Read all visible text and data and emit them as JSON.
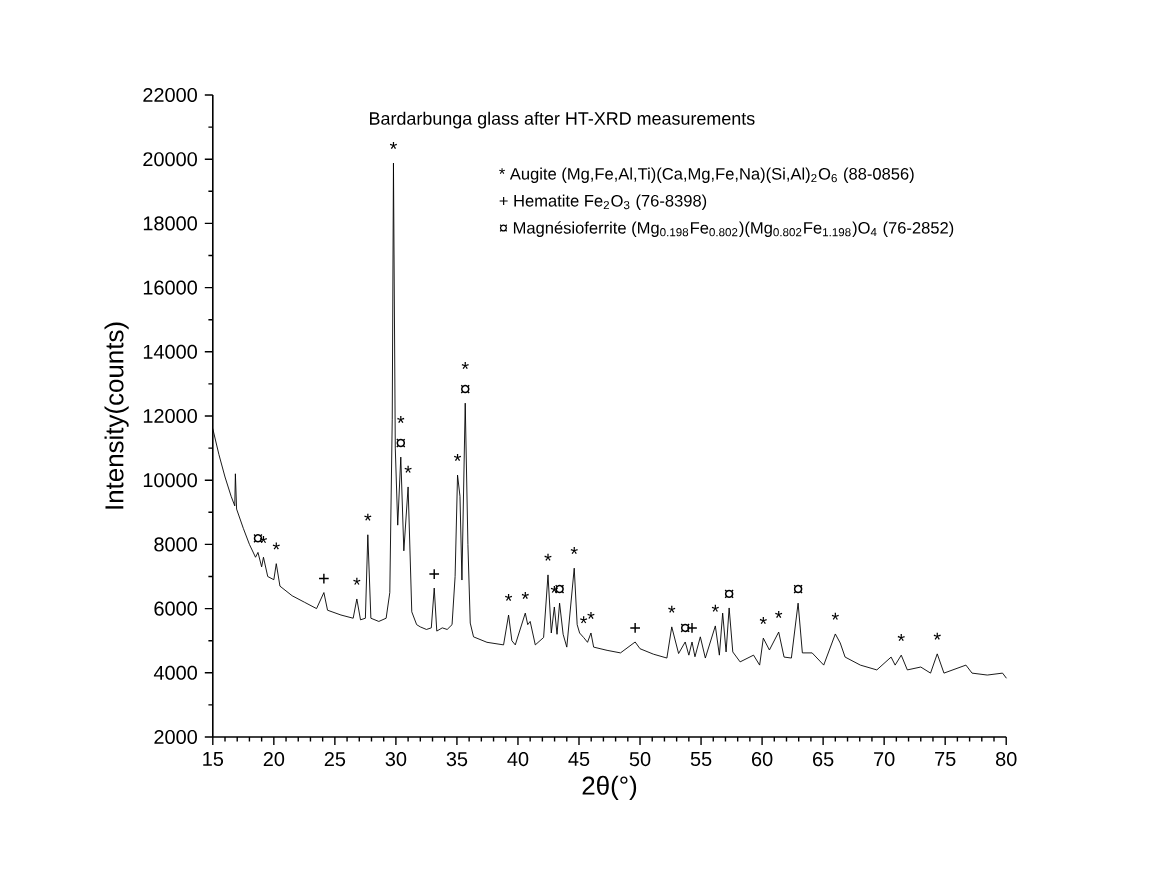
{
  "chart_data": {
    "type": "line",
    "title": "Bardarbunga glass after HT-XRD measurements",
    "xlabel": "2θ(°)",
    "ylabel": "Intensity(counts)",
    "x": [
      15,
      15.5,
      16.0,
      16.5,
      16.8,
      16.85,
      16.95,
      17.5,
      18.0,
      18.5,
      18.7,
      19.0,
      19.15,
      19.5,
      20.0,
      20.2,
      20.5,
      21.5,
      22.5,
      23.5,
      24.1,
      24.4,
      25.5,
      26.5,
      26.8,
      27.1,
      27.5,
      27.7,
      27.95,
      28.6,
      29.2,
      29.5,
      29.7,
      29.8,
      29.95,
      30.15,
      30.4,
      30.65,
      31.0,
      31.3,
      31.7,
      32.0,
      32.5,
      32.9,
      33.14,
      33.35,
      33.8,
      34.2,
      34.6,
      34.85,
      35.05,
      35.25,
      35.41,
      35.68,
      35.9,
      36.09,
      36.36,
      37.46,
      38.82,
      39.23,
      39.5,
      39.78,
      40.6,
      40.8,
      41.0,
      41.42,
      42.1,
      42.46,
      42.73,
      42.98,
      43.2,
      43.41,
      43.7,
      44.0,
      44.61,
      44.85,
      45.05,
      45.38,
      45.7,
      45.98,
      46.2,
      47.3,
      48.4,
      49.6,
      50.0,
      51.1,
      52.2,
      52.6,
      53.16,
      53.7,
      54.0,
      54.26,
      54.5,
      54.94,
      55.35,
      56.17,
      56.5,
      56.77,
      57.05,
      57.3,
      57.6,
      58.2,
      59.3,
      59.8,
      60.1,
      60.6,
      61.36,
      61.8,
      62.4,
      62.95,
      63.3,
      64.1,
      65.05,
      66.0,
      66.4,
      66.8,
      68.05,
      69.4,
      70.57,
      70.9,
      71.4,
      71.9,
      73.0,
      73.8,
      74.35,
      74.9,
      76.7,
      77.2,
      78.45,
      79.7,
      80.0
    ],
    "series": [
      {
        "color": "#000000",
        "values": [
          11600,
          10800,
          10100,
          9500,
          9200,
          10200,
          9100,
          8500,
          8000,
          7600,
          7750,
          7300,
          7600,
          7000,
          6900,
          7400,
          6700,
          6400,
          6200,
          6000,
          6500,
          5950,
          5800,
          5700,
          6300,
          5650,
          5700,
          8300,
          5700,
          5600,
          5700,
          6500,
          11900,
          19880,
          11000,
          8600,
          10720,
          7800,
          9790,
          5900,
          5500,
          5430,
          5350,
          5400,
          6640,
          5300,
          5400,
          5350,
          5500,
          7000,
          10160,
          9500,
          6890,
          12400,
          8000,
          5550,
          5120,
          4950,
          4870,
          5800,
          5000,
          4870,
          5860,
          5500,
          5600,
          4870,
          5100,
          7050,
          5240,
          6050,
          5200,
          6170,
          5200,
          4800,
          7260,
          5500,
          5240,
          5100,
          4950,
          5240,
          4800,
          4700,
          4620,
          4960,
          4750,
          4580,
          4460,
          5430,
          4600,
          4960,
          4550,
          4960,
          4500,
          5120,
          4460,
          5460,
          4550,
          5860,
          4650,
          6020,
          4650,
          4340,
          4550,
          4240,
          5080,
          4710,
          5270,
          4490,
          4460,
          6170,
          4620,
          4620,
          4240,
          5210,
          4930,
          4490,
          4240,
          4090,
          4490,
          4240,
          4550,
          4090,
          4180,
          3990,
          4590,
          3990,
          4240,
          3990,
          3930,
          3990,
          3840
        ]
      }
    ],
    "xlim": [
      15,
      80
    ],
    "ylim": [
      2000,
      22000
    ],
    "xticks": [
      15,
      20,
      25,
      30,
      35,
      40,
      45,
      50,
      55,
      60,
      65,
      70,
      75,
      80
    ],
    "yticks": [
      2000,
      4000,
      6000,
      8000,
      10000,
      12000,
      14000,
      16000,
      18000,
      20000,
      22000
    ],
    "grid": false,
    "marker": "none",
    "line_style": "solid",
    "annotations": [
      "* Augite (Mg,Fe,Al,Ti)(Ca,Mg,Fe,Na)(Si,Al)$_{2}$O$_{6}$ (88-0856)",
      "+ Hematite Fe$_{2}$O$_{3}$ (76-8398)",
      "¤ Magnésioferrite (Mg$_{0.198}$Fe$_{0.802}$)(Mg$_{0.802}$Fe$_{1.198}$)O$_{4}$ (76-2852)",
      {
        "text": "¤",
        "x": 18.7,
        "y": 7750
      },
      {
        "text": "*",
        "x": 19.15,
        "y": 7600
      },
      {
        "text": "*",
        "x": 20.2,
        "y": 7400
      },
      {
        "text": "+",
        "x": 24.1,
        "y": 6500
      },
      {
        "text": "*",
        "x": 26.8,
        "y": 6300
      },
      {
        "text": "*",
        "x": 27.7,
        "y": 8300
      },
      {
        "text": "*",
        "x": 29.8,
        "y": 19880
      },
      {
        "text": "¤",
        "x": 30.4,
        "y": 10720
      },
      {
        "text": "*",
        "x": 30.4,
        "y": 10720
      },
      {
        "text": "*",
        "x": 31.0,
        "y": 9790
      },
      {
        "text": "+",
        "x": 33.14,
        "y": 6640
      },
      {
        "text": "*",
        "x": 35.05,
        "y": 10160
      },
      {
        "text": "¤",
        "x": 35.68,
        "y": 12400
      },
      {
        "text": "*",
        "x": 35.68,
        "y": 12400
      },
      {
        "text": "*",
        "x": 39.23,
        "y": 5800
      },
      {
        "text": "*",
        "x": 40.6,
        "y": 5860
      },
      {
        "text": "*",
        "x": 42.46,
        "y": 7050
      },
      {
        "text": "*",
        "x": 42.98,
        "y": 6050
      },
      {
        "text": "¤",
        "x": 43.41,
        "y": 6170
      },
      {
        "text": "*",
        "x": 44.61,
        "y": 7260
      },
      {
        "text": "*",
        "x": 45.38,
        "y": 5100
      },
      {
        "text": "*",
        "x": 45.98,
        "y": 5240
      },
      {
        "text": "+",
        "x": 49.6,
        "y": 4960
      },
      {
        "text": "*",
        "x": 52.6,
        "y": 5430
      },
      {
        "text": "¤",
        "x": 53.7,
        "y": 4960
      },
      {
        "text": "+",
        "x": 54.26,
        "y": 4960
      },
      {
        "text": "*",
        "x": 56.17,
        "y": 5460
      },
      {
        "text": "¤",
        "x": 57.3,
        "y": 6020
      },
      {
        "text": "*",
        "x": 60.1,
        "y": 5080
      },
      {
        "text": "*",
        "x": 61.36,
        "y": 5270
      },
      {
        "text": "¤",
        "x": 62.95,
        "y": 6170
      },
      {
        "text": "*",
        "x": 66.0,
        "y": 5210
      },
      {
        "text": "*",
        "x": 71.4,
        "y": 4550
      },
      {
        "text": "*",
        "x": 74.35,
        "y": 4590
      }
    ]
  }
}
